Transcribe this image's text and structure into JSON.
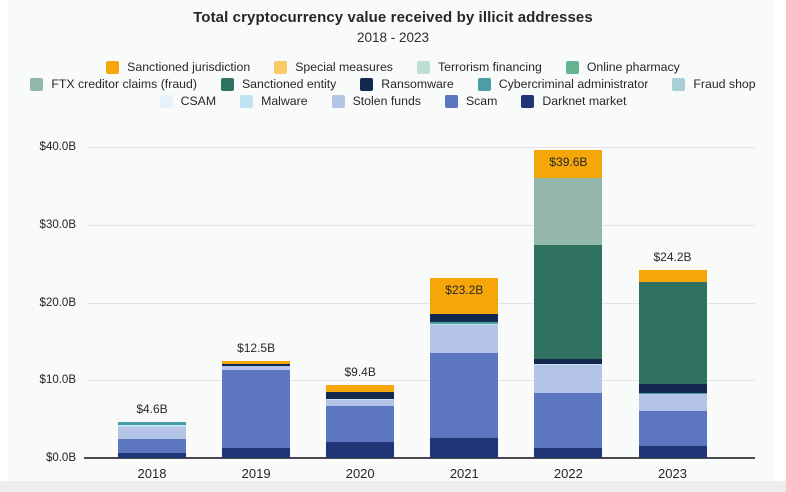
{
  "palette": {
    "Sanctioned jurisdiction": "#f6a609",
    "Special measures": "#f8cb66",
    "Terrorism financing": "#bfdfd2",
    "Online pharmacy": "#63b48f",
    "FTX creditor claims (fraud)": "#93b7ab",
    "Sanctioned entity": "#2f7262",
    "Ransomware": "#14274e",
    "Cybercriminal administrator": "#4e9ea8",
    "Fraud shop": "#a9cfd9",
    "CSAM": "#e6f2fa",
    "Malware": "#bfe3f2",
    "Stolen funds": "#b3c4e6",
    "Scam": "#5b76be",
    "Darknet market": "#1f3575"
  },
  "legend": {
    "rows": [
      [
        "Sanctioned jurisdiction",
        "Special measures",
        "Terrorism financing",
        "Online pharmacy"
      ],
      [
        "FTX creditor claims (fraud)",
        "Sanctioned entity",
        "Ransomware",
        "Cybercriminal administrator",
        "Fraud shop"
      ],
      [
        "CSAM",
        "Malware",
        "Stolen funds",
        "Scam",
        "Darknet market"
      ]
    ]
  },
  "chart_data": {
    "type": "bar",
    "stacked": true,
    "title": "Total cryptocurrency value received by illicit addresses",
    "subtitle": "2018 - 2023",
    "xlabel": "",
    "ylabel": "",
    "ylim": [
      0,
      40
    ],
    "grid": "horizontal",
    "legend_position": "top",
    "ytick_values": [
      0,
      10,
      20,
      30,
      40
    ],
    "ytick_labels": [
      "$0.0B",
      "$10.0B",
      "$20.0B",
      "$30.0B",
      "$40.0B"
    ],
    "categories": [
      "2018",
      "2019",
      "2020",
      "2021",
      "2022",
      "2023"
    ],
    "series": [
      {
        "name": "Darknet market",
        "values": [
          0.6,
          1.3,
          2.1,
          2.6,
          1.3,
          1.5
        ]
      },
      {
        "name": "Scam",
        "values": [
          1.9,
          10.0,
          4.6,
          10.9,
          7.0,
          4.5
        ]
      },
      {
        "name": "Stolen funds",
        "values": [
          1.5,
          0.5,
          0.7,
          3.6,
          3.6,
          2.2
        ]
      },
      {
        "name": "Malware",
        "values": [
          0.3,
          0,
          0.2,
          0.2,
          0.2,
          0
        ]
      },
      {
        "name": "CSAM",
        "values": [
          0,
          0,
          0,
          0,
          0,
          0
        ]
      },
      {
        "name": "Fraud shop",
        "values": [
          0,
          0,
          0,
          0,
          0,
          0
        ]
      },
      {
        "name": "Cybercriminal administrator",
        "values": [
          0.3,
          0,
          0,
          0.2,
          0,
          0.2
        ]
      },
      {
        "name": "Ransomware",
        "values": [
          0,
          0.3,
          0.9,
          1.0,
          0.6,
          1.1
        ]
      },
      {
        "name": "Sanctioned entity",
        "values": [
          0,
          0,
          0,
          0,
          14.7,
          13.2
        ]
      },
      {
        "name": "FTX creditor claims (fraud)",
        "values": [
          0,
          0,
          0,
          0,
          8.6,
          0
        ]
      },
      {
        "name": "Online pharmacy",
        "values": [
          0,
          0,
          0,
          0,
          0,
          0
        ]
      },
      {
        "name": "Terrorism financing",
        "values": [
          0,
          0,
          0,
          0,
          0,
          0
        ]
      },
      {
        "name": "Special measures",
        "values": [
          0,
          0,
          0,
          0,
          0,
          0
        ]
      },
      {
        "name": "Sanctioned jurisdiction",
        "values": [
          0,
          0.4,
          0.9,
          4.7,
          3.6,
          1.5
        ]
      }
    ],
    "totals": [
      4.6,
      12.5,
      9.4,
      23.2,
      39.6,
      24.2
    ],
    "total_labels": [
      "$4.6B",
      "$12.5B",
      "$9.4B",
      "$23.2B",
      "$39.6B",
      "$24.2B"
    ],
    "total_label_inside": [
      false,
      false,
      false,
      true,
      true,
      false
    ]
  }
}
